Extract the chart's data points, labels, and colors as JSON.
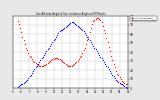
{
  "title": "Sun Altitude Angle & Sun Incidence Angle on PV Panels",
  "legend_blue": "Sun Altitude (deg)",
  "legend_red": "Incidence Angle (deg)",
  "bg_color": "#e8e8e8",
  "plot_bg": "#ffffff",
  "blue_color": "#0000ff",
  "red_color": "#ff0000",
  "yticks": [
    0,
    10,
    20,
    30,
    40,
    50,
    60,
    70,
    80
  ],
  "ylim": [
    0,
    80
  ],
  "xlim": [
    0,
    96
  ],
  "grid_color": "#b0b0b0",
  "marker_size": 0.8,
  "time_labels": [
    "5",
    "6",
    "7",
    "8",
    "9",
    "10",
    "11",
    "12",
    "13",
    "14",
    "15",
    "16",
    "17",
    "18",
    "19"
  ],
  "blue_x": [
    4,
    5,
    6,
    7,
    8,
    9,
    10,
    11,
    12,
    13,
    14,
    15,
    16,
    17,
    18,
    19,
    20,
    21,
    22,
    23,
    24,
    25,
    26,
    27,
    28,
    29,
    30,
    31,
    32,
    33,
    34,
    35,
    36,
    37,
    38,
    39,
    40,
    41,
    42,
    43,
    44,
    45,
    46,
    47,
    48,
    49,
    50,
    51,
    52,
    53,
    54,
    55,
    56,
    57,
    58,
    59,
    60,
    61,
    62,
    63,
    64,
    65,
    66,
    67,
    68,
    69,
    70,
    71,
    72,
    73,
    74,
    75,
    76,
    77,
    78,
    79,
    80,
    81,
    82,
    83,
    84,
    85,
    86,
    87,
    88,
    89,
    90,
    91,
    92,
    93,
    94,
    95
  ],
  "blue_y": [
    1,
    2,
    3,
    4,
    5,
    6,
    7,
    8,
    9,
    11,
    13,
    15,
    17,
    19,
    21,
    23,
    25,
    27,
    29,
    31,
    33,
    35,
    37,
    39,
    41,
    43,
    45,
    47,
    49,
    51,
    53,
    55,
    57,
    59,
    61,
    63,
    64,
    65,
    66,
    67,
    68,
    69,
    70,
    71,
    72,
    73,
    73,
    72,
    71,
    70,
    69,
    68,
    67,
    66,
    65,
    63,
    61,
    59,
    57,
    55,
    53,
    51,
    49,
    47,
    45,
    43,
    41,
    39,
    37,
    35,
    33,
    31,
    29,
    27,
    25,
    23,
    21,
    19,
    17,
    15,
    13,
    11,
    9,
    8,
    7,
    6,
    5,
    4,
    3,
    2,
    1,
    0
  ],
  "red_x": [
    4,
    5,
    6,
    7,
    8,
    9,
    10,
    11,
    12,
    13,
    14,
    15,
    16,
    17,
    18,
    19,
    20,
    21,
    22,
    23,
    24,
    25,
    26,
    27,
    28,
    29,
    30,
    31,
    32,
    33,
    34,
    35,
    36,
    37,
    38,
    39,
    40,
    41,
    42,
    43,
    44,
    45,
    46,
    47,
    48,
    49,
    50,
    51,
    52,
    53,
    54,
    55,
    56,
    57,
    58,
    59,
    60,
    61,
    62,
    63,
    64,
    65,
    66,
    67,
    68,
    69,
    70,
    71,
    72,
    73,
    74,
    75,
    76,
    77,
    78,
    79,
    80,
    81,
    82,
    83,
    84,
    85,
    86,
    87,
    88,
    89,
    90,
    91,
    92,
    93,
    94,
    95
  ],
  "red_y": [
    74,
    71,
    67,
    62,
    57,
    53,
    49,
    45,
    42,
    39,
    36,
    34,
    32,
    30,
    29,
    28,
    27,
    26,
    25,
    25,
    25,
    25,
    26,
    26,
    27,
    28,
    29,
    30,
    31,
    32,
    32,
    33,
    33,
    33,
    32,
    32,
    31,
    30,
    29,
    28,
    27,
    26,
    25,
    25,
    25,
    25,
    26,
    27,
    28,
    29,
    30,
    32,
    34,
    36,
    39,
    42,
    45,
    49,
    53,
    57,
    62,
    67,
    71,
    74,
    76,
    77,
    78,
    78,
    77,
    76,
    73,
    69,
    65,
    61,
    56,
    51,
    46,
    41,
    36,
    31,
    27,
    23,
    19,
    16,
    14,
    12,
    10,
    8,
    7,
    6,
    5,
    4
  ]
}
